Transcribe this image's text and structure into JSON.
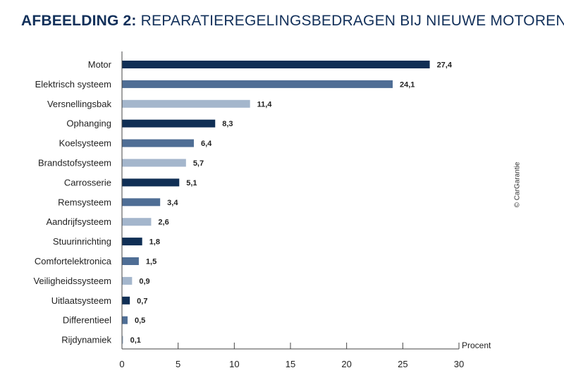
{
  "title_prefix": "AFBEELDING 2:",
  "title_main": "REPARATIEREGELINGSBEDRAGEN BIJ NIEUWE MOTOREN",
  "copyright": "© CarGarantie",
  "colors": {
    "title": "#12305a",
    "bar_palette": [
      "#102f55",
      "#4f6e95",
      "#a4b6cc"
    ],
    "axis": "#444444",
    "text": "#222222"
  },
  "chart_data": {
    "type": "bar",
    "orientation": "horizontal",
    "title": "AFBEELDING 2: REPARATIEREGELINGSBEDRAGEN BIJ NIEUWE MOTOREN",
    "xlabel": "Procent",
    "ylabel": "",
    "xlim": [
      0,
      30
    ],
    "xticks": [
      0,
      5,
      10,
      15,
      20,
      25,
      30
    ],
    "categories": [
      "Motor",
      "Elektrisch systeem",
      "Versnellingsbak",
      "Ophanging",
      "Koelsysteem",
      "Brandstofsysteem",
      "Carrosserie",
      "Remsysteem",
      "Aandrijfsysteem",
      "Stuurinrichting",
      "Comfortelektronica",
      "Veiligheidssysteem",
      "Uitlaatsysteem",
      "Differentieel",
      "Rijdynamiek"
    ],
    "values": [
      27.4,
      24.1,
      11.4,
      8.3,
      6.4,
      5.7,
      5.1,
      3.4,
      2.6,
      1.8,
      1.5,
      0.9,
      0.7,
      0.5,
      0.1
    ],
    "value_labels": [
      "27,4",
      "24,1",
      "11,4",
      "8,3",
      "6,4",
      "5,7",
      "5,1",
      "3,4",
      "2,6",
      "1,8",
      "1,5",
      "0,9",
      "0,7",
      "0,5",
      "0,1"
    ]
  }
}
